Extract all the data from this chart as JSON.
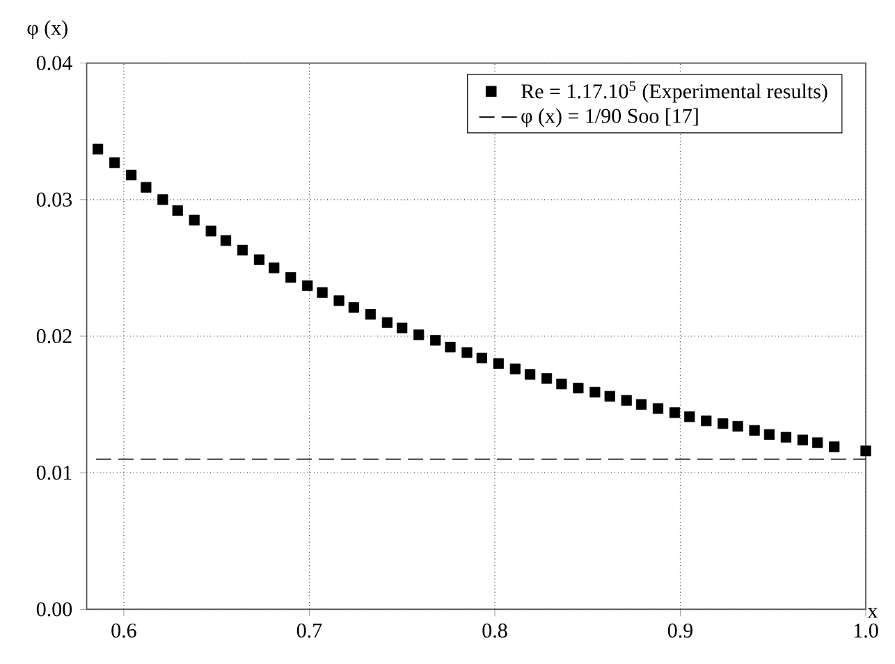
{
  "chart_data": {
    "type": "scatter",
    "xlabel": "x",
    "ylabel": "φ (x)",
    "xlim": [
      0.58,
      1.0
    ],
    "ylim": [
      0,
      0.04
    ],
    "xticks": [
      0.6,
      0.7,
      0.8,
      0.9,
      {
        "value": 1.0,
        "label": "1.0"
      }
    ],
    "yticks": [
      {
        "value": 0,
        "label": "0.00"
      },
      {
        "value": 0.01,
        "label": "0.01"
      },
      {
        "value": 0.02,
        "label": "0.02"
      },
      {
        "value": 0.03,
        "label": "0.03"
      },
      {
        "value": 0.04,
        "label": "0.04"
      }
    ],
    "grid": true,
    "legend": "top right",
    "series": [
      {
        "name": "Re = 1.17.10$^{5}$ (Experimental results)",
        "marker": "square",
        "color": "#000000",
        "x": [
          0.586,
          0.595,
          0.604,
          0.612,
          0.621,
          0.629,
          0.638,
          0.647,
          0.655,
          0.664,
          0.673,
          0.681,
          0.69,
          0.699,
          0.707,
          0.716,
          0.724,
          0.733,
          0.742,
          0.75,
          0.759,
          0.768,
          0.776,
          0.785,
          0.793,
          0.802,
          0.811,
          0.819,
          0.828,
          0.836,
          0.845,
          0.854,
          0.862,
          0.871,
          0.879,
          0.888,
          0.897,
          0.905,
          0.914,
          0.923,
          0.931,
          0.94,
          0.948,
          0.957,
          0.966,
          0.974,
          0.983,
          1.0
        ],
        "values": [
          0.0337,
          0.0327,
          0.0318,
          0.0309,
          0.03,
          0.0292,
          0.0285,
          0.0277,
          0.027,
          0.0263,
          0.0256,
          0.025,
          0.0243,
          0.0237,
          0.0232,
          0.0226,
          0.0221,
          0.0216,
          0.021,
          0.0206,
          0.0201,
          0.0197,
          0.0192,
          0.0188,
          0.0184,
          0.018,
          0.0176,
          0.0172,
          0.0169,
          0.0165,
          0.0162,
          0.0159,
          0.0156,
          0.0153,
          0.015,
          0.0147,
          0.0144,
          0.0141,
          0.0138,
          0.0136,
          0.0134,
          0.0131,
          0.0128,
          0.0126,
          0.0124,
          0.0122,
          0.0119,
          0.0116
        ]
      },
      {
        "name": "φ (x) = 1/90 Soo [17]",
        "type": "line",
        "marker": "none",
        "line_style": "dashed",
        "color": "#000000",
        "x": [
          0.585,
          1.0
        ],
        "values": [
          0.011,
          0.011
        ]
      }
    ]
  }
}
